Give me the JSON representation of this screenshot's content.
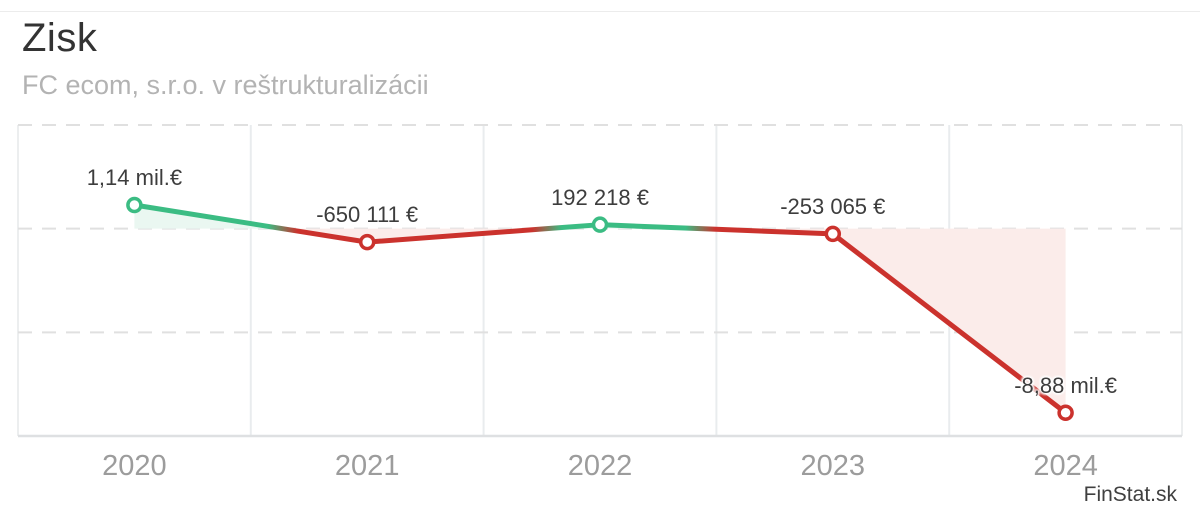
{
  "header": {
    "title": "Zisk",
    "subtitle": "FC ecom, s.r.o. v reštrukturalizácii"
  },
  "watermark": "FinStat.sk",
  "chart_data": {
    "type": "line",
    "title": "Zisk",
    "subtitle": "FC ecom, s.r.o. v reštrukturalizácii",
    "categories": [
      "2020",
      "2021",
      "2022",
      "2023",
      "2024"
    ],
    "values": [
      1140000,
      -650111,
      192218,
      -253065,
      -8880000
    ],
    "point_labels": [
      "1,14 mil.€",
      "-650 111 €",
      "192 218 €",
      "-253 065 €",
      "-8,88 mil.€"
    ],
    "currency": "€",
    "xlabel": "",
    "ylabel": "",
    "ylim": [
      -10000000,
      5000000
    ],
    "grid_step": 5000000,
    "grid": "on",
    "legend": "none",
    "colors": {
      "positive_line": "#3bbc83",
      "negative_line": "#cb322d",
      "positive_fill": "#eaf7f1",
      "negative_fill": "#fbecea",
      "grid_dashed": "#e0e0e0",
      "column_separator": "#e9ecee",
      "plot_border": "#e6e8ea",
      "axis_line": "#dee0e2",
      "label_text": "#3d3d3d",
      "tick_text": "#9c9c9c"
    }
  }
}
